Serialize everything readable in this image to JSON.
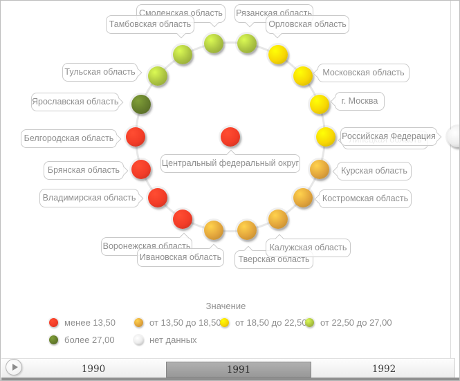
{
  "chart_data": {
    "type": "scatter",
    "layout": "radial-ring",
    "title": "",
    "legend_title": "Значение",
    "legend_position": "bottom",
    "bins": [
      {
        "key": "red",
        "label": "менее 13,50",
        "color": "#f23c27"
      },
      {
        "key": "orange",
        "label": "от 13,50 до 18,50",
        "color": "#e1a43c"
      },
      {
        "key": "yellow",
        "label": "от 18,50 до 22,50",
        "color": "#f7d605"
      },
      {
        "key": "light_green",
        "label": "от 22,50 до 27,00",
        "color": "#abc342"
      },
      {
        "key": "dark_green",
        "label": "более 27,00",
        "color": "#647c2c"
      },
      {
        "key": "no_data",
        "label": "нет данных",
        "color": "#ededed"
      }
    ],
    "center": {
      "name": "Центральный федеральный округ",
      "bin": "менее 13,50",
      "key": "red"
    },
    "reference": {
      "name": "Российская Федерация",
      "bin": "нет данных",
      "key": "no_data"
    },
    "ring": [
      {
        "name": "Рязанская область",
        "bin": "от 22,50 до 27,00",
        "key": "light_green"
      },
      {
        "name": "Орловская область",
        "bin": "от 18,50 до 22,50",
        "key": "yellow"
      },
      {
        "name": "Московская область",
        "bin": "от 18,50 до 22,50",
        "key": "yellow"
      },
      {
        "name": "г. Москва",
        "bin": "от 18,50 до 22,50",
        "key": "yellow"
      },
      {
        "name": "Липецкая область",
        "bin": "от 18,50 до 22,50",
        "key": "yellow"
      },
      {
        "name": "Курская область",
        "bin": "от 13,50 до 18,50",
        "key": "orange"
      },
      {
        "name": "Костромская область",
        "bin": "от 13,50 до 18,50",
        "key": "orange"
      },
      {
        "name": "Калужская область",
        "bin": "от 13,50 до 18,50",
        "key": "orange"
      },
      {
        "name": "Тверская область",
        "bin": "от 13,50 до 18,50",
        "key": "orange"
      },
      {
        "name": "Ивановская область",
        "bin": "от 13,50 до 18,50",
        "key": "orange"
      },
      {
        "name": "Воронежская область",
        "bin": "менее 13,50",
        "key": "red"
      },
      {
        "name": "Владимирская область",
        "bin": "менее 13,50",
        "key": "red"
      },
      {
        "name": "Брянская область",
        "bin": "менее 13,50",
        "key": "red"
      },
      {
        "name": "Белгородская область",
        "bin": "менее 13,50",
        "key": "red"
      },
      {
        "name": "Ярославская область",
        "bin": "более 27,00",
        "key": "dark_green"
      },
      {
        "name": "Тульская область",
        "bin": "от 22,50 до 27,00",
        "key": "light_green"
      },
      {
        "name": "Тамбовская область",
        "bin": "от 22,50 до 27,00",
        "key": "light_green"
      },
      {
        "name": "Смоленская область",
        "bin": "от 22,50 до 27,00",
        "key": "light_green"
      }
    ],
    "year": "1991"
  },
  "timeline": {
    "years": [
      "1990",
      "1991",
      "1992"
    ],
    "selected": "1991"
  }
}
